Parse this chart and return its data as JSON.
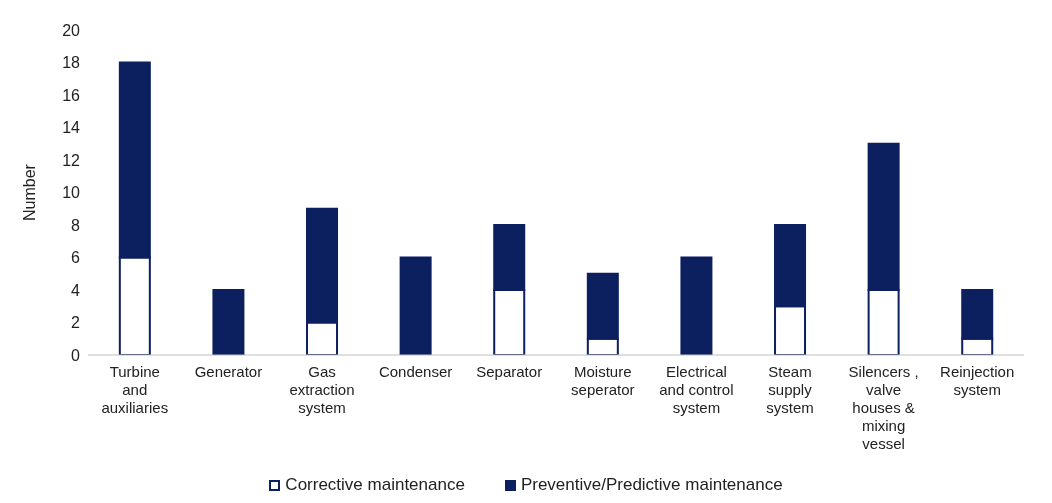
{
  "chart_data": {
    "type": "bar",
    "stacked": true,
    "ylabel": "Number",
    "categories": [
      "Turbine\nand\nauxiliaries",
      "Generator",
      "Gas\nextraction\nsystem",
      "Condenser",
      "Separator",
      "Moisture\nseperator",
      "Electrical\nand control\nsystem",
      "Steam\nsupply\nsystem",
      "Silencers ,\nvalve\nhouses &\nmixing\nvessel",
      "Reinjection\nsystem"
    ],
    "series": [
      {
        "name": "Corrective maintenance",
        "color": "#ffffff",
        "values": [
          6,
          0,
          2,
          0,
          4,
          1,
          0,
          3,
          4,
          1
        ]
      },
      {
        "name": "Preventive/Predictive maintenance",
        "color": "#0c1f5e",
        "values": [
          12,
          4,
          7,
          6,
          4,
          4,
          6,
          5,
          9,
          3
        ]
      }
    ],
    "ylim": [
      0,
      20
    ],
    "yticks": [
      0,
      2,
      4,
      6,
      8,
      10,
      12,
      14,
      16,
      18,
      20
    ],
    "grid": false,
    "legend": "bottom"
  }
}
